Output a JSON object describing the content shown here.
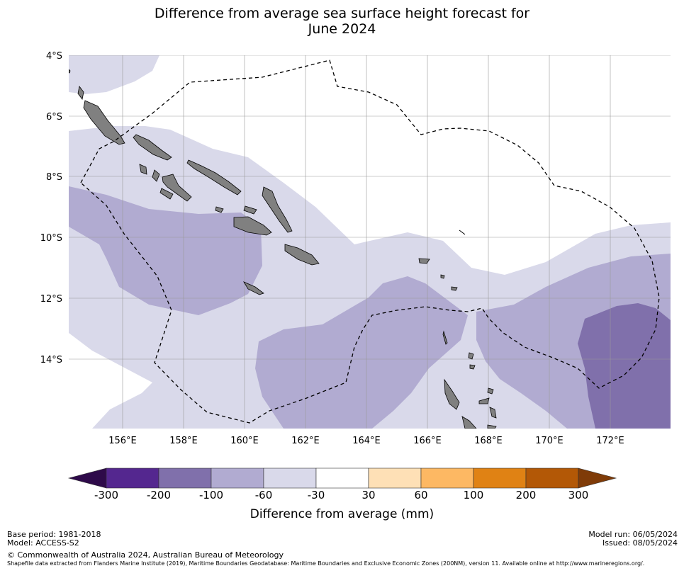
{
  "title_line1": "Difference from average sea surface height forecast for",
  "title_line2": "June 2024",
  "lat_labels": [
    "4°S",
    "6°S",
    "8°S",
    "10°S",
    "12°S",
    "14°S"
  ],
  "lon_labels": [
    "156°E",
    "158°E",
    "160°E",
    "162°E",
    "164°E",
    "166°E",
    "168°E",
    "170°E",
    "172°E"
  ],
  "colorbar": {
    "tick_labels": [
      "-300",
      "-200",
      "-100",
      "-60",
      "-30",
      "30",
      "60",
      "100",
      "200",
      "300"
    ],
    "title": "Difference from average (mm)",
    "colors": [
      "#2e0a4a",
      "#54278f",
      "#8070ab",
      "#b1abd1",
      "#d9d9ea",
      "#ffffff",
      "#fee0b6",
      "#fdb863",
      "#e08214",
      "#b35806",
      "#7f3b08"
    ]
  },
  "footer": {
    "base_period": "Base period: 1981-2018",
    "model": "Model: ACCESS-S2",
    "copyright": "© Commonwealth of Australia 2024, Australian Bureau of Meteorology",
    "shapefile_note": "Shapefile data extracted from Flanders Marine Institute (2019), Maritime Boundaries Geodatabase: Maritime Boundaries and Exclusive Economic Zones (200NM), version 11. Available online at http://www.marineregions.org/.",
    "model_run": "Model run: 06/05/2024",
    "issued": "Issued: 08/05/2024"
  },
  "colors": {
    "land": "#808080",
    "class_-60_-30": "#d9d9ea",
    "class_-100_-60": "#b1abd1",
    "class_-200_-100": "#8070ab"
  }
}
